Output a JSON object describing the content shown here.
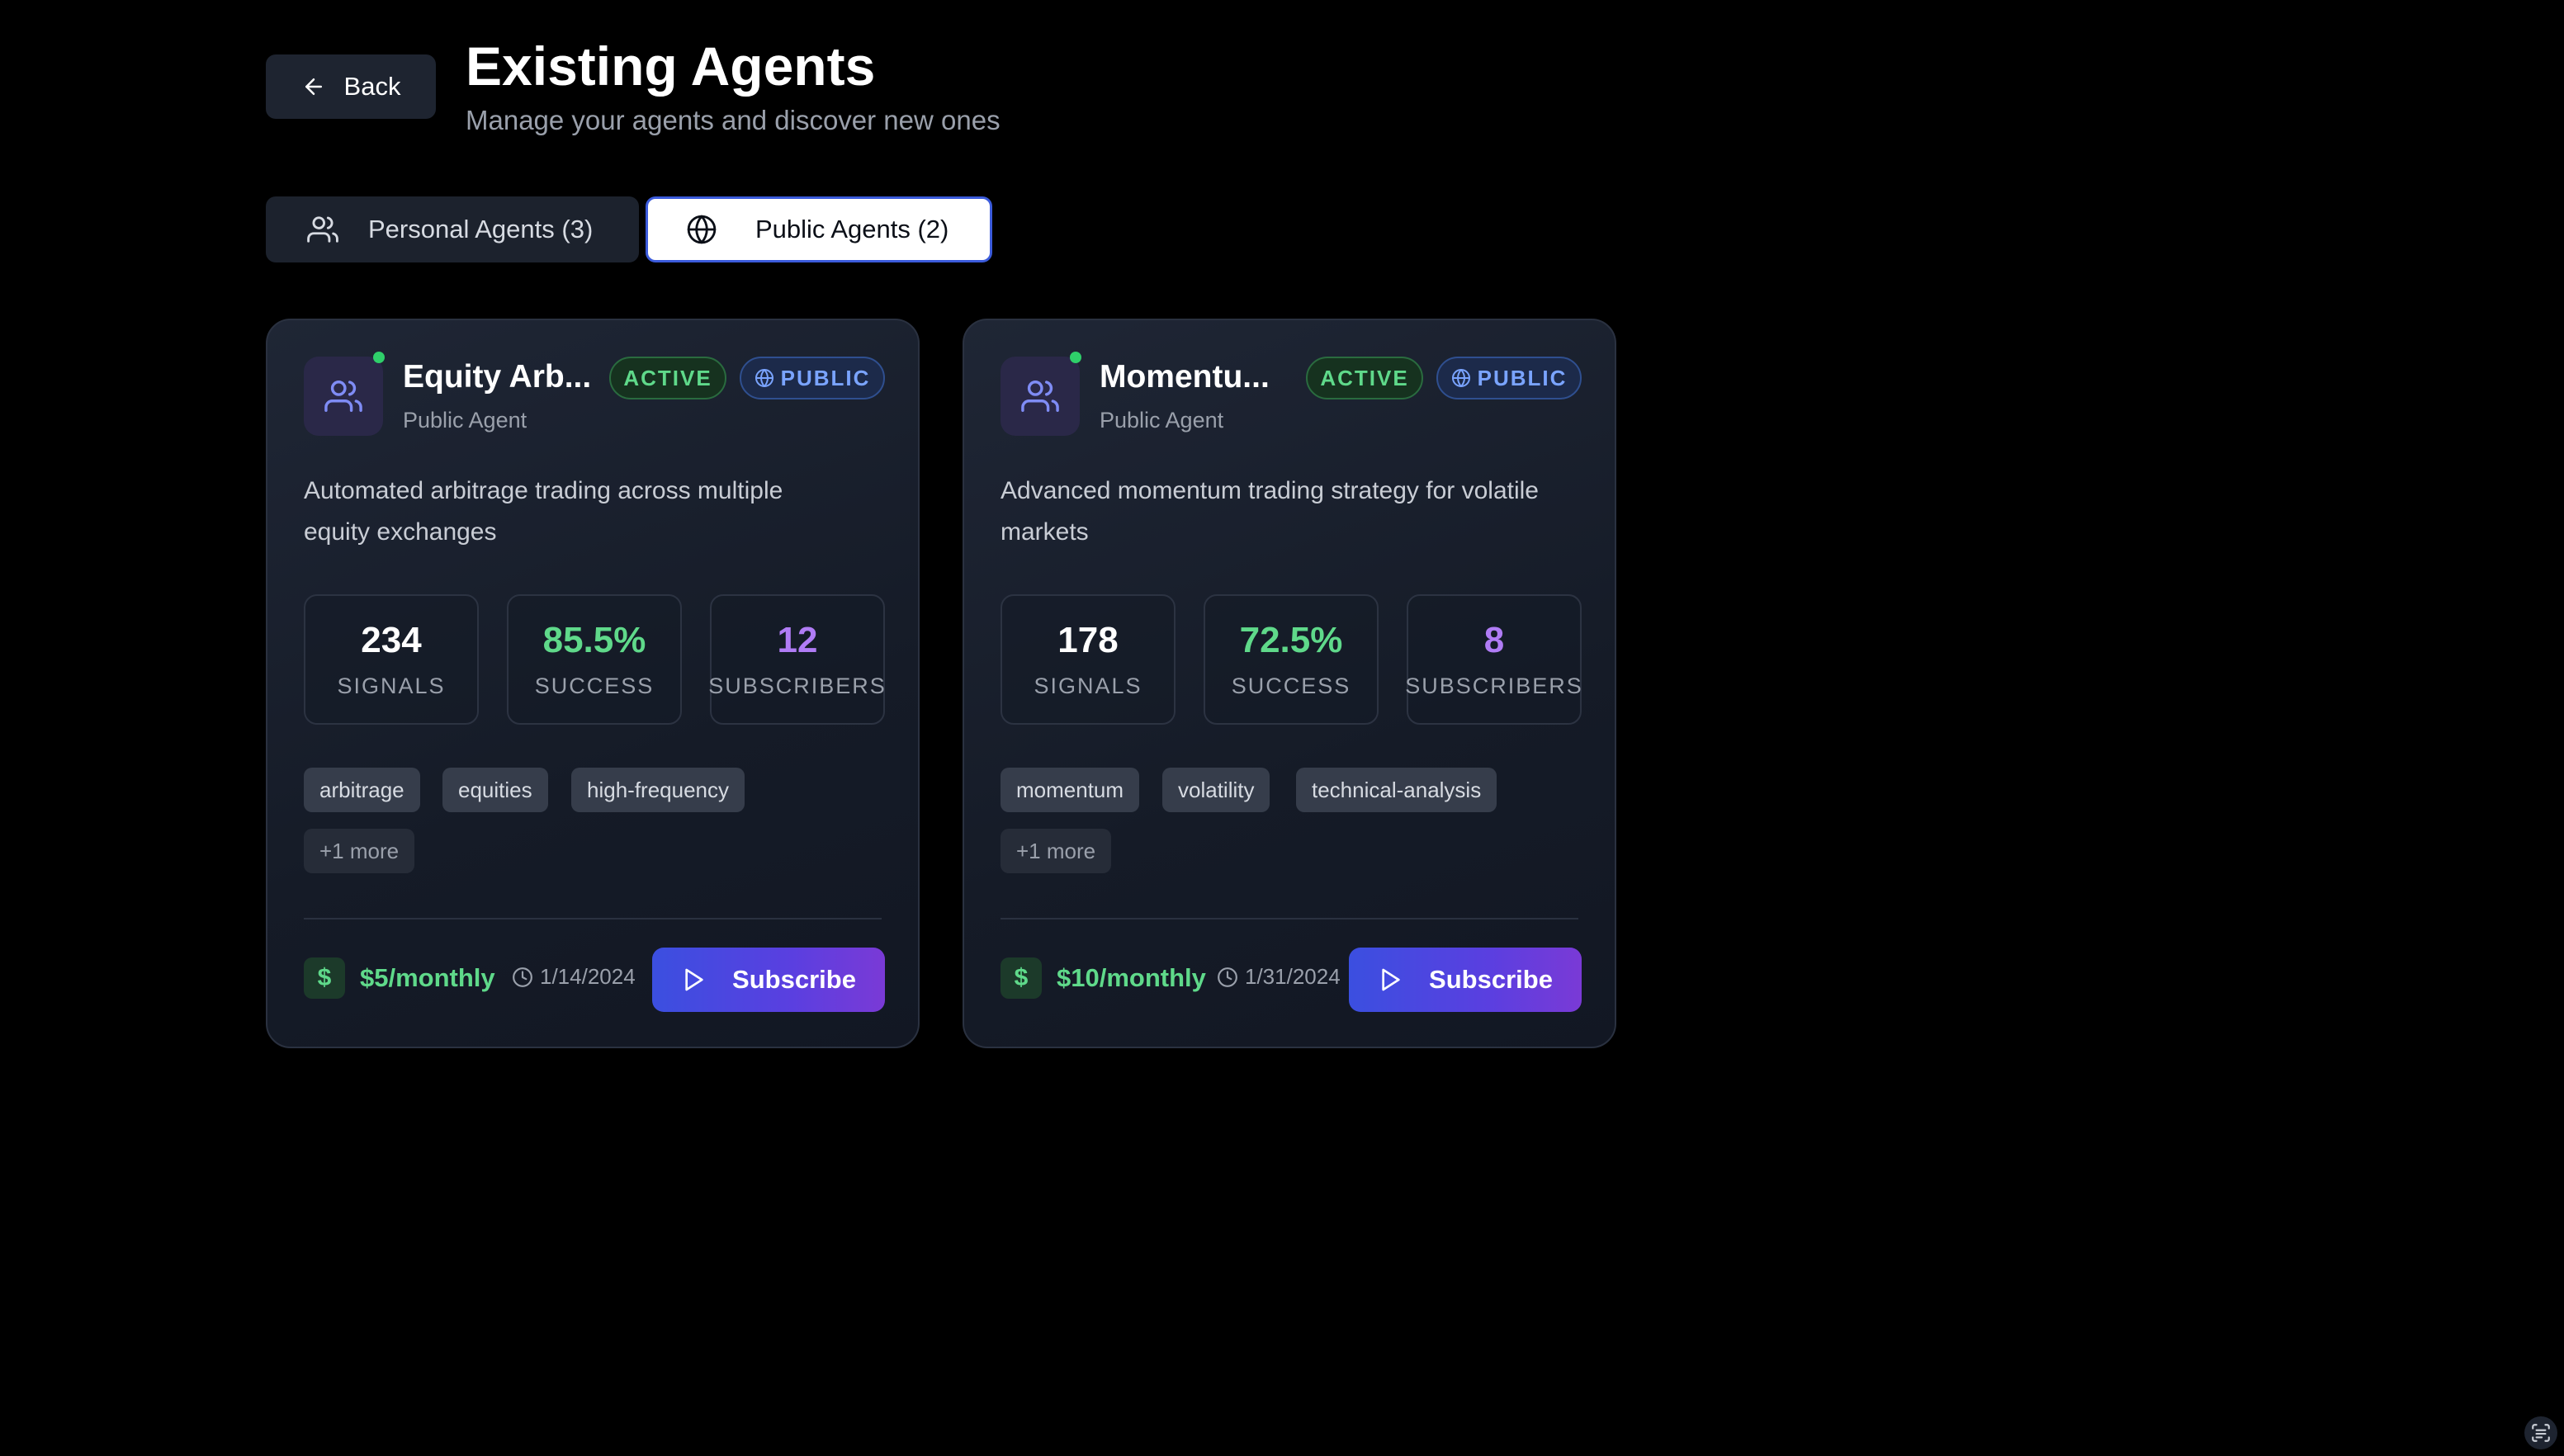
{
  "header": {
    "back_label": "Back",
    "title": "Existing Agents",
    "subtitle": "Manage your agents and discover new ones"
  },
  "tabs": [
    {
      "label": "Personal Agents (3)",
      "icon": "users-icon",
      "active": false
    },
    {
      "label": "Public Agents (2)",
      "icon": "globe-icon",
      "active": true
    }
  ],
  "colors": {
    "background": "#000000",
    "card": "#1a2030",
    "accent_green": "#5fd98a",
    "accent_purple": "#b07cf5",
    "accent_blue": "#7aa4ff",
    "subscribe_gradient_start": "#3b4fe0",
    "subscribe_gradient_end": "#7a3ad6"
  },
  "agents": [
    {
      "name": "Equity Arb...",
      "type": "Public Agent",
      "status": "ACTIVE",
      "visibility": "PUBLIC",
      "online": true,
      "description": "Automated arbitrage trading across multiple equity exchanges",
      "stats": [
        {
          "value": "234",
          "label": "SIGNALS"
        },
        {
          "value": "85.5%",
          "label": "SUCCESS"
        },
        {
          "value": "12",
          "label": "SUBSCRIBERS"
        }
      ],
      "tags": [
        "arbitrage",
        "equities",
        "high-frequency"
      ],
      "more_tags": "+1 more",
      "price": "$5/monthly",
      "date": "1/14/2024",
      "subscribe_label": "Subscribe"
    },
    {
      "name": "Momentu...",
      "type": "Public Agent",
      "status": "ACTIVE",
      "visibility": "PUBLIC",
      "online": true,
      "description": "Advanced momentum trading strategy for volatile markets",
      "stats": [
        {
          "value": "178",
          "label": "SIGNALS"
        },
        {
          "value": "72.5%",
          "label": "SUCCESS"
        },
        {
          "value": "8",
          "label": "SUBSCRIBERS"
        }
      ],
      "tags": [
        "momentum",
        "volatility",
        "technical-analysis"
      ],
      "more_tags": "+1 more",
      "price": "$10/monthly",
      "date": "1/31/2024",
      "subscribe_label": "Subscribe"
    }
  ]
}
